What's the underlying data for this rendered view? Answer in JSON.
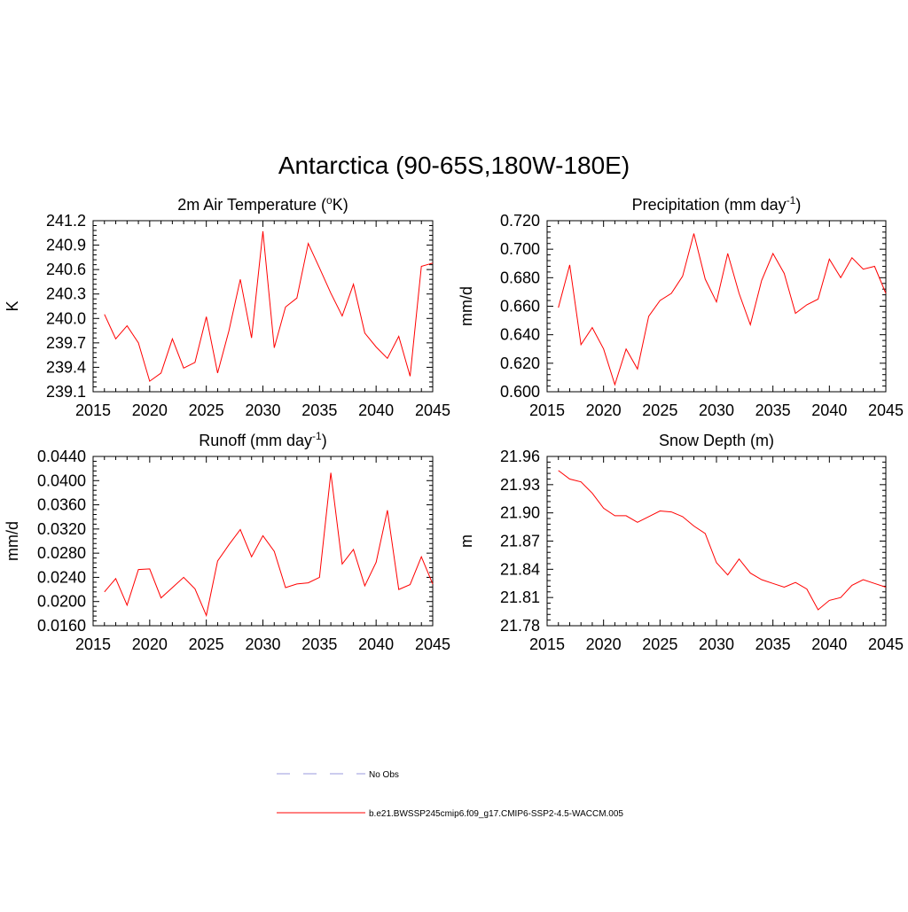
{
  "title": "Antarctica (90-65S,180W-180E)",
  "colors": {
    "model": "#ff0000",
    "obs": "#9999dd",
    "axis": "#000000"
  },
  "legend": [
    {
      "label": "No Obs",
      "style": "dashed"
    },
    {
      "label": "b.e21.BWSSP245cmip6.f09_g17.CMIP6-SSP2-4.5-WACCM.005",
      "style": "solid"
    }
  ],
  "chart_data": [
    {
      "type": "line",
      "title": "2m Air Temperature (",
      "title_sup": "o",
      "title_end": "K)",
      "ylabel": "K",
      "xlim": [
        2015,
        2045
      ],
      "ylim": [
        239.1,
        241.2
      ],
      "xticks": [
        "2015",
        "2020",
        "2025",
        "2030",
        "2035",
        "2040",
        "2045"
      ],
      "yticks": [
        "239.1",
        "239.4",
        "239.7",
        "240.0",
        "240.3",
        "240.6",
        "240.9",
        "241.2"
      ],
      "x": [
        2016,
        2017,
        2018,
        2019,
        2020,
        2021,
        2022,
        2023,
        2024,
        2025,
        2026,
        2027,
        2028,
        2029,
        2030,
        2031,
        2032,
        2033,
        2034,
        2035,
        2036,
        2037,
        2038,
        2039,
        2040,
        2041,
        2042,
        2043,
        2044,
        2045
      ],
      "series": [
        {
          "name": "b.e21.BWSSP245cmip6.f09_g17.CMIP6-SSP2-4.5-WACCM.005",
          "values": [
            240.05,
            239.75,
            239.91,
            239.7,
            239.23,
            239.33,
            239.75,
            239.39,
            239.46,
            240.02,
            239.33,
            239.85,
            240.48,
            239.76,
            241.07,
            239.64,
            240.14,
            240.25,
            240.92,
            240.62,
            240.31,
            240.03,
            240.42,
            239.82,
            239.65,
            239.51,
            239.78,
            239.29,
            240.64,
            240.68
          ]
        }
      ]
    },
    {
      "type": "line",
      "title": "Precipitation (mm day",
      "title_sup": "-1",
      "title_end": ")",
      "ylabel": "mm/d",
      "xlim": [
        2015,
        2045
      ],
      "ylim": [
        0.6,
        0.72
      ],
      "xticks": [
        "2015",
        "2020",
        "2025",
        "2030",
        "2035",
        "2040",
        "2045"
      ],
      "yticks": [
        "0.600",
        "0.620",
        "0.640",
        "0.660",
        "0.680",
        "0.700",
        "0.720"
      ],
      "x": [
        2016,
        2017,
        2018,
        2019,
        2020,
        2021,
        2022,
        2023,
        2024,
        2025,
        2026,
        2027,
        2028,
        2029,
        2030,
        2031,
        2032,
        2033,
        2034,
        2035,
        2036,
        2037,
        2038,
        2039,
        2040,
        2041,
        2042,
        2043,
        2044,
        2045
      ],
      "series": [
        {
          "name": "b.e21.BWSSP245cmip6.f09_g17.CMIP6-SSP2-4.5-WACCM.005",
          "values": [
            0.659,
            0.689,
            0.633,
            0.645,
            0.63,
            0.605,
            0.63,
            0.616,
            0.653,
            0.664,
            0.669,
            0.681,
            0.711,
            0.679,
            0.663,
            0.697,
            0.669,
            0.647,
            0.678,
            0.697,
            0.683,
            0.655,
            0.661,
            0.665,
            0.693,
            0.68,
            0.694,
            0.686,
            0.688,
            0.669
          ]
        }
      ]
    },
    {
      "type": "line",
      "title": "Runoff (mm day",
      "title_sup": "-1",
      "title_end": ")",
      "ylabel": "mm/d",
      "xlim": [
        2015,
        2045
      ],
      "ylim": [
        0.016,
        0.044
      ],
      "xticks": [
        "2015",
        "2020",
        "2025",
        "2030",
        "2035",
        "2040",
        "2045"
      ],
      "yticks": [
        "0.0160",
        "0.0200",
        "0.0240",
        "0.0280",
        "0.0320",
        "0.0360",
        "0.0400",
        "0.0440"
      ],
      "x": [
        2016,
        2017,
        2018,
        2019,
        2020,
        2021,
        2022,
        2023,
        2024,
        2025,
        2026,
        2027,
        2028,
        2029,
        2030,
        2031,
        2032,
        2033,
        2034,
        2035,
        2036,
        2037,
        2038,
        2039,
        2040,
        2041,
        2042,
        2043,
        2044,
        2045
      ],
      "series": [
        {
          "name": "b.e21.BWSSP245cmip6.f09_g17.CMIP6-SSP2-4.5-WACCM.005",
          "values": [
            0.0216,
            0.0238,
            0.0194,
            0.0253,
            0.0254,
            0.0206,
            0.0223,
            0.024,
            0.0221,
            0.0177,
            0.0267,
            0.0294,
            0.0319,
            0.0274,
            0.0309,
            0.0283,
            0.0223,
            0.0229,
            0.0231,
            0.024,
            0.0413,
            0.0262,
            0.0286,
            0.0226,
            0.0265,
            0.0351,
            0.022,
            0.0228,
            0.0274,
            0.0229
          ]
        }
      ]
    },
    {
      "type": "line",
      "title": "Snow Depth (m)",
      "title_sup": "",
      "title_end": "",
      "ylabel": "m",
      "xlim": [
        2015,
        2045
      ],
      "ylim": [
        21.78,
        21.96
      ],
      "xticks": [
        "2015",
        "2020",
        "2025",
        "2030",
        "2035",
        "2040",
        "2045"
      ],
      "yticks": [
        "21.78",
        "21.81",
        "21.84",
        "21.87",
        "21.90",
        "21.93",
        "21.96"
      ],
      "x": [
        2016,
        2017,
        2018,
        2019,
        2020,
        2021,
        2022,
        2023,
        2024,
        2025,
        2026,
        2027,
        2028,
        2029,
        2030,
        2031,
        2032,
        2033,
        2034,
        2035,
        2036,
        2037,
        2038,
        2039,
        2040,
        2041,
        2042,
        2043,
        2044,
        2045
      ],
      "series": [
        {
          "name": "b.e21.BWSSP245cmip6.f09_g17.CMIP6-SSP2-4.5-WACCM.005",
          "values": [
            21.945,
            21.936,
            21.933,
            21.921,
            21.905,
            21.897,
            21.897,
            21.89,
            21.896,
            21.902,
            21.901,
            21.896,
            21.886,
            21.878,
            21.847,
            21.834,
            21.851,
            21.836,
            21.829,
            21.825,
            21.821,
            21.826,
            21.819,
            21.797,
            21.807,
            21.81,
            21.823,
            21.829,
            21.825,
            21.821
          ]
        }
      ]
    }
  ]
}
